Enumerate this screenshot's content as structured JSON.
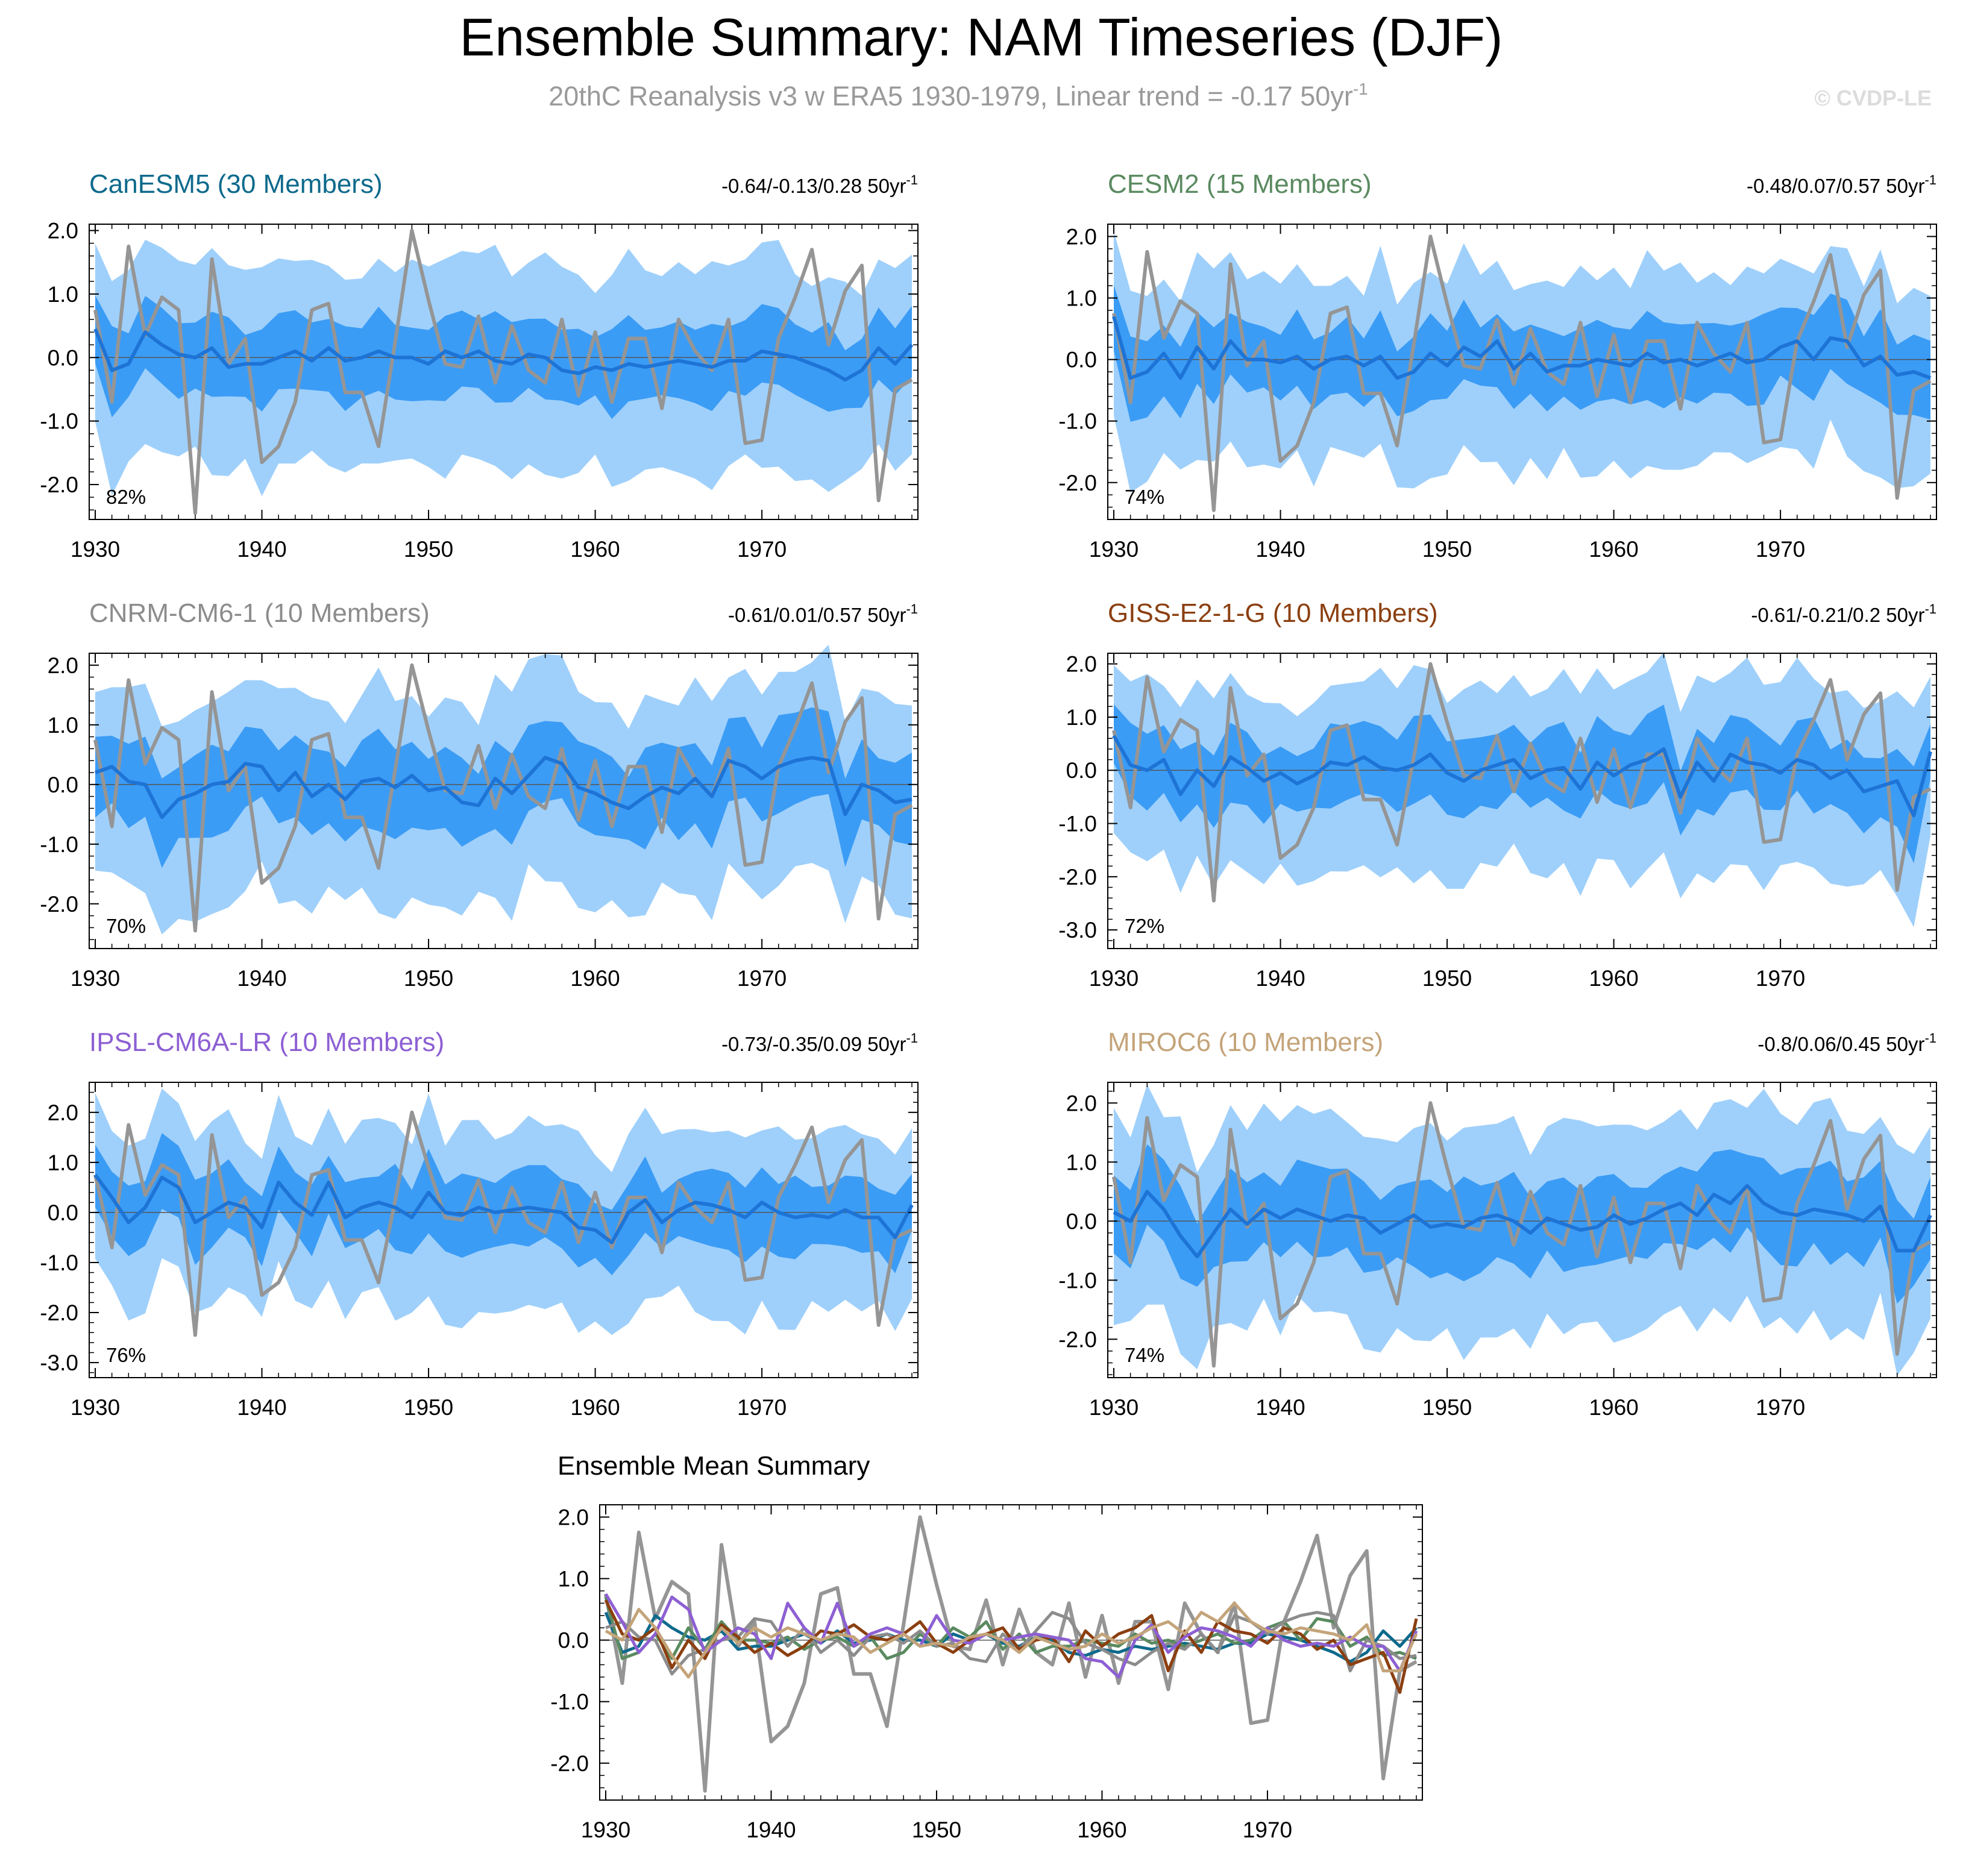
{
  "title": "Ensemble Summary: NAM Timeseries (DJF)",
  "subtitle_main": "20thC Reanalysis v3 w ERA5 1930-1979, Linear trend = -0.17 50yr",
  "subtitle_sup": "-1",
  "watermark": "© CVDP-LE",
  "trend_unit": "50yr",
  "trend_unit_sup": "-1",
  "colors": {
    "outer_band": "#9fd0fb",
    "inner_band": "#3b9cf5",
    "ens_mean": "#1e74d6",
    "observed": "#959595",
    "frame": "#000000"
  },
  "chart_data": {
    "type": "line",
    "x_years": [
      1930,
      1931,
      1932,
      1933,
      1934,
      1935,
      1936,
      1937,
      1938,
      1939,
      1940,
      1941,
      1942,
      1943,
      1944,
      1945,
      1946,
      1947,
      1948,
      1949,
      1950,
      1951,
      1952,
      1953,
      1954,
      1955,
      1956,
      1957,
      1958,
      1959,
      1960,
      1961,
      1962,
      1963,
      1964,
      1965,
      1966,
      1967,
      1968,
      1969,
      1970,
      1971,
      1972,
      1973,
      1974,
      1975,
      1976,
      1977,
      1978,
      1979
    ],
    "xlim": [
      1930,
      1979
    ],
    "x_ticks": [
      "1930",
      "1940",
      "1950",
      "1960",
      "1970"
    ],
    "observed": {
      "name": "20thC Reanalysis v3 w ERA5",
      "values": [
        0.75,
        -0.7,
        1.75,
        0.35,
        0.95,
        0.75,
        -2.45,
        1.55,
        -0.1,
        0.3,
        -1.65,
        -1.4,
        -0.7,
        0.75,
        0.85,
        -0.55,
        -0.55,
        -1.4,
        0.25,
        2.0,
        0.9,
        -0.1,
        -0.15,
        0.65,
        -0.4,
        0.5,
        -0.2,
        -0.4,
        0.6,
        -0.6,
        0.4,
        -0.7,
        0.3,
        0.3,
        -0.8,
        0.6,
        0.1,
        -0.2,
        0.6,
        -1.35,
        -1.3,
        0.3,
        0.95,
        1.7,
        0.2,
        1.05,
        1.45,
        -2.25,
        -0.5,
        -0.35
      ]
    },
    "panels": [
      {
        "title": "CanESM5 (30 Members)",
        "title_color": "#0e6a8c",
        "trend": "-0.64/-0.13/0.28",
        "pct": "82%",
        "yticks": [
          "2.0",
          "1.0",
          "0.0",
          "-1.0",
          "-2.0"
        ],
        "ylim": [
          -2.55,
          2.1
        ],
        "mean": [
          0.45,
          -0.2,
          -0.1,
          0.4,
          0.2,
          0.05,
          0.0,
          0.15,
          -0.15,
          -0.1,
          -0.1,
          0.0,
          0.1,
          -0.05,
          0.15,
          -0.05,
          0.0,
          0.1,
          0.0,
          0.0,
          -0.1,
          0.1,
          0.0,
          0.1,
          -0.05,
          -0.1,
          0.05,
          0.0,
          -0.2,
          -0.25,
          -0.15,
          -0.2,
          -0.1,
          -0.15,
          -0.1,
          -0.05,
          -0.1,
          -0.15,
          -0.05,
          -0.05,
          0.1,
          0.05,
          0.0,
          -0.1,
          -0.2,
          -0.35,
          -0.2,
          0.15,
          -0.1,
          0.2
        ],
        "seed": 11,
        "w_in": 0.62,
        "w_out": 1.35,
        "v": 0.35,
        "skew": 0.15
      },
      {
        "title": "CESM2 (15 Members)",
        "title_color": "#5a8a60",
        "trend": "-0.48/0.07/0.57",
        "pct": "74%",
        "yticks": [
          "2.0",
          "1.0",
          "0.0",
          "-1.0",
          "-2.0"
        ],
        "ylim": [
          -2.6,
          2.2
        ],
        "mean": [
          0.7,
          -0.3,
          -0.2,
          0.1,
          -0.3,
          0.2,
          -0.15,
          0.3,
          0.0,
          0.0,
          -0.05,
          0.05,
          -0.15,
          0.0,
          0.05,
          -0.1,
          0.05,
          -0.3,
          -0.2,
          0.1,
          -0.1,
          0.2,
          0.05,
          0.3,
          -0.15,
          0.1,
          -0.2,
          -0.1,
          -0.1,
          0.0,
          -0.05,
          -0.1,
          0.1,
          -0.05,
          0.0,
          -0.1,
          0.0,
          0.1,
          -0.05,
          0.0,
          0.2,
          0.3,
          0.0,
          0.35,
          0.3,
          -0.1,
          0.05,
          -0.25,
          -0.2,
          -0.3
        ],
        "seed": 23,
        "w_in": 0.6,
        "w_out": 1.3,
        "v": 0.35,
        "skew": 0.1
      },
      {
        "title": "CNRM-CM6-1 (10 Members)",
        "title_color": "#8c8c8c",
        "trend": "-0.61/0.01/0.57",
        "pct": "70%",
        "yticks": [
          "2.0",
          "1.0",
          "0.0",
          "-1.0",
          "-2.0"
        ],
        "ylim": [
          -2.75,
          2.2
        ],
        "mean": [
          0.2,
          0.3,
          0.05,
          0.0,
          -0.55,
          -0.25,
          -0.15,
          0.0,
          0.05,
          0.35,
          0.3,
          -0.1,
          0.2,
          -0.2,
          0.0,
          -0.25,
          0.05,
          0.1,
          -0.05,
          0.15,
          -0.1,
          -0.05,
          -0.3,
          -0.35,
          0.1,
          -0.15,
          0.15,
          0.45,
          0.35,
          -0.05,
          -0.15,
          -0.3,
          -0.4,
          -0.2,
          -0.05,
          -0.15,
          0.1,
          -0.2,
          0.4,
          0.3,
          0.1,
          0.3,
          0.4,
          0.45,
          0.4,
          -0.5,
          0.0,
          -0.1,
          -0.3,
          -0.25
        ],
        "seed": 37,
        "w_in": 0.7,
        "w_out": 1.4,
        "v": 0.4,
        "skew": 0.12
      },
      {
        "title": "GISS-E2-1-G (10 Members)",
        "title_color": "#8b3f10",
        "trend": "-0.61/-0.21/0.2",
        "pct": "72%",
        "yticks": [
          "2.0",
          "1.0",
          "0.0",
          "-1.0",
          "-2.0",
          "-3.0"
        ],
        "ylim": [
          -3.35,
          2.2
        ],
        "mean": [
          0.65,
          0.1,
          0.0,
          0.2,
          -0.45,
          0.0,
          -0.3,
          0.25,
          0.05,
          -0.2,
          -0.05,
          -0.25,
          -0.1,
          0.15,
          0.1,
          0.25,
          0.05,
          0.0,
          0.1,
          0.3,
          -0.05,
          -0.2,
          0.0,
          0.1,
          0.2,
          -0.15,
          0.0,
          0.05,
          -0.35,
          0.15,
          -0.1,
          0.1,
          0.2,
          0.4,
          -0.5,
          0.15,
          -0.2,
          0.3,
          0.15,
          0.1,
          -0.05,
          0.2,
          0.1,
          -0.15,
          0.0,
          -0.4,
          -0.3,
          -0.2,
          -0.85,
          0.35
        ],
        "seed": 53,
        "w_in": 0.7,
        "w_out": 1.45,
        "v": 0.45,
        "skew": 0.2
      },
      {
        "title": "IPSL-CM6A-LR (10 Members)",
        "title_color": "#8d5fd3",
        "trend": "-0.73/-0.35/0.09",
        "pct": "76%",
        "yticks": [
          "2.0",
          "1.0",
          "0.0",
          "-1.0",
          "-2.0",
          "-3.0"
        ],
        "ylim": [
          -3.3,
          2.6
        ],
        "mean": [
          0.75,
          0.3,
          -0.2,
          0.1,
          0.7,
          0.5,
          -0.2,
          0.0,
          0.2,
          0.1,
          -0.3,
          0.6,
          0.2,
          -0.05,
          0.6,
          -0.1,
          0.1,
          0.2,
          0.1,
          -0.1,
          0.4,
          0.0,
          -0.05,
          0.1,
          0.0,
          0.05,
          0.1,
          0.05,
          0.0,
          -0.3,
          -0.35,
          -0.6,
          0.0,
          0.25,
          -0.2,
          0.05,
          0.2,
          0.15,
          0.05,
          -0.1,
          0.2,
          0.0,
          -0.1,
          -0.05,
          -0.1,
          0.05,
          -0.1,
          -0.1,
          -0.5,
          0.15
        ],
        "seed": 67,
        "w_in": 0.7,
        "w_out": 1.45,
        "v": 0.4,
        "skew": 0.18
      },
      {
        "title": "MIROC6 (10 Members)",
        "title_color": "#c4a47a",
        "trend": "-0.8/0.06/0.45",
        "pct": "74%",
        "yticks": [
          "2.0",
          "1.0",
          "0.0",
          "-1.0",
          "-2.0"
        ],
        "ylim": [
          -2.65,
          2.35
        ],
        "mean": [
          0.15,
          0.0,
          0.5,
          0.2,
          -0.25,
          -0.6,
          -0.2,
          0.2,
          -0.05,
          0.2,
          0.05,
          0.2,
          0.1,
          0.0,
          0.1,
          0.05,
          -0.2,
          -0.05,
          0.1,
          -0.1,
          -0.05,
          -0.1,
          0.05,
          0.1,
          0.0,
          -0.2,
          0.05,
          -0.05,
          -0.15,
          -0.1,
          0.1,
          -0.05,
          0.05,
          0.2,
          0.3,
          0.1,
          0.45,
          0.3,
          0.6,
          0.3,
          0.15,
          0.1,
          0.2,
          0.15,
          0.1,
          0.0,
          0.25,
          -0.5,
          -0.5,
          0.1
        ],
        "seed": 79,
        "w_in": 0.72,
        "w_out": 1.45,
        "v": 0.42,
        "skew": 0.1
      }
    ],
    "summary": {
      "title": "Ensemble Mean Summary",
      "yticks": [
        "2.0",
        "1.0",
        "0.0",
        "-1.0",
        "-2.0"
      ],
      "ylim": [
        -2.6,
        2.2
      ]
    }
  }
}
